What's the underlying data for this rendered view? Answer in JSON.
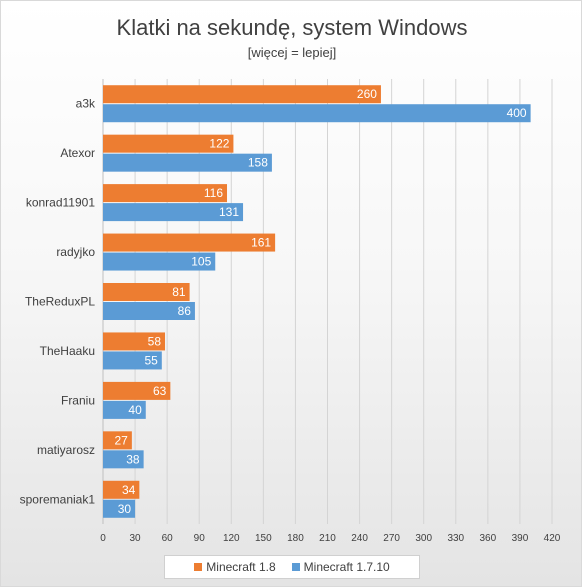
{
  "chart_data": {
    "type": "bar",
    "orientation": "horizontal",
    "title": "Klatki na sekundę, system Windows",
    "subtitle": "[więcej = lepiej]",
    "categories": [
      "a3k",
      "Atexor",
      "konrad11901",
      "radyjko",
      "TheReduxPL",
      "TheHaaku",
      "Franiu",
      "matiyarosz",
      "sporemaniak1"
    ],
    "series": [
      {
        "name": "Minecraft 1.8",
        "color": "#ED7D31",
        "values": [
          260,
          122,
          116,
          161,
          81,
          58,
          63,
          27,
          34
        ]
      },
      {
        "name": "Minecraft 1.7.10",
        "color": "#5B9BD5",
        "values": [
          400,
          158,
          131,
          105,
          86,
          55,
          40,
          38,
          30
        ]
      }
    ],
    "xlim": [
      0,
      420
    ],
    "xticks": [
      0,
      30,
      60,
      90,
      120,
      150,
      180,
      210,
      240,
      270,
      300,
      330,
      360,
      390,
      420
    ],
    "grid": true,
    "legend_position": "bottom",
    "data_labels": true
  }
}
